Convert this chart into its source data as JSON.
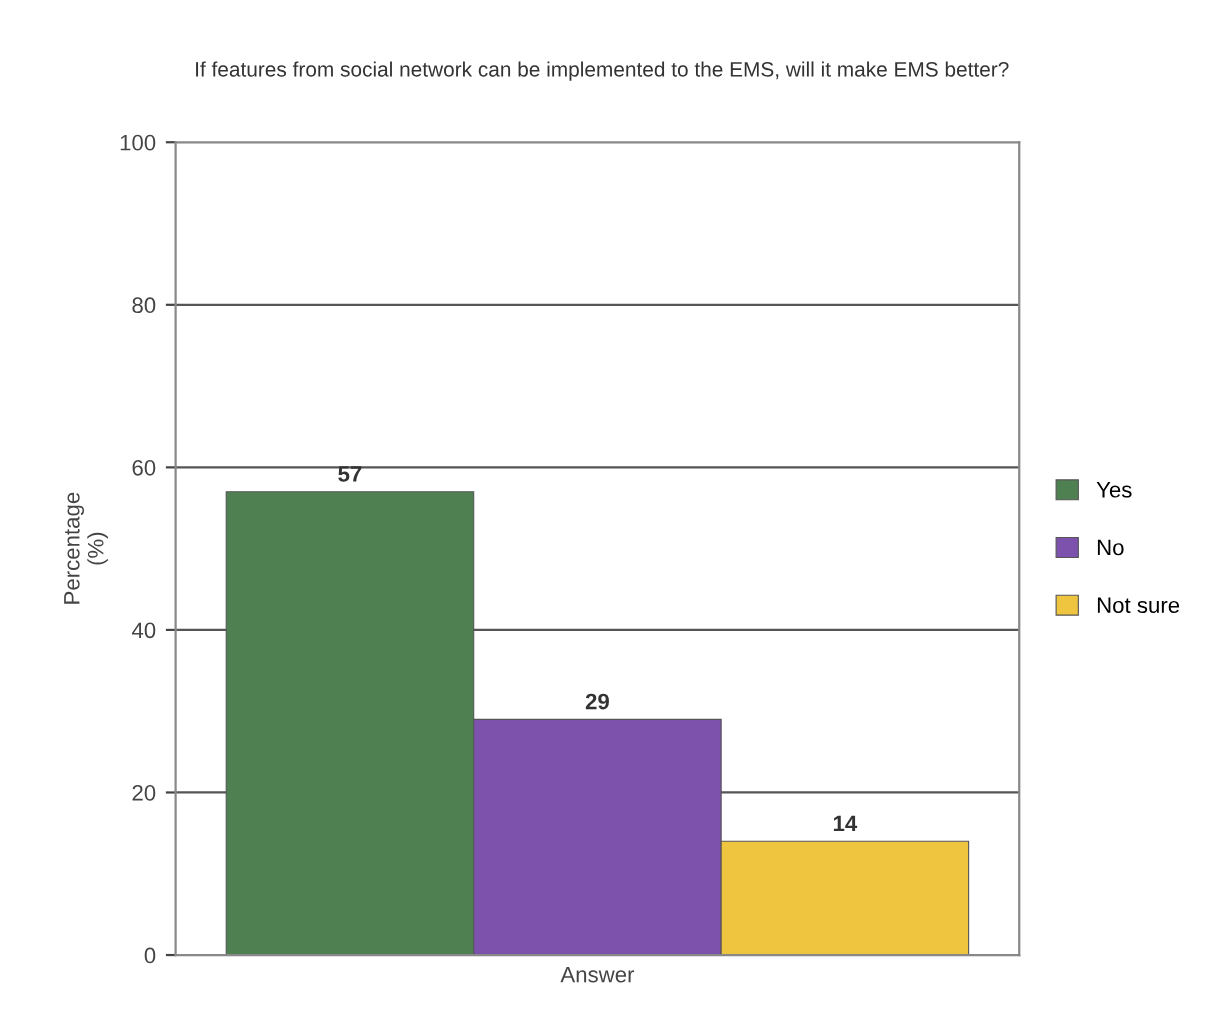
{
  "chart_data": {
    "type": "bar",
    "title": "If features from social network can be implemented to the EMS, will it make EMS better?",
    "xlabel": "Answer",
    "ylabel": "Percentage\n(%)",
    "categories": [
      null
    ],
    "series": [
      {
        "name": "Yes",
        "color": "#4f8052",
        "values": [
          57
        ]
      },
      {
        "name": "No",
        "color": "#7c52ad",
        "values": [
          29
        ]
      },
      {
        "name": "Not sure",
        "color": "#efc540",
        "values": [
          14
        ]
      }
    ],
    "ylim": [
      0,
      100
    ],
    "yticks": [
      0,
      20,
      40,
      60,
      80,
      100
    ],
    "grid": "y",
    "legend": "right",
    "data_labels": true,
    "tick_labels": "y"
  }
}
